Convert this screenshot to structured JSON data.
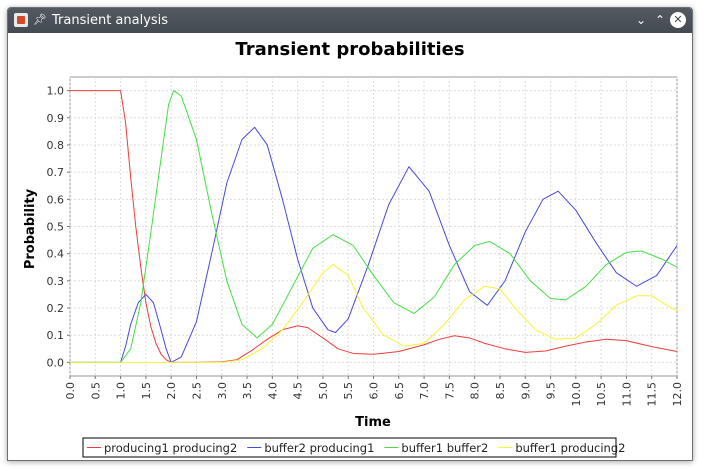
{
  "window": {
    "title": "Transient analysis",
    "app_icon": "java-app-icon",
    "pin_icon": "pin-icon",
    "controls": {
      "minimize": "⌄",
      "maximize": "⌃",
      "close": "✕"
    }
  },
  "chart_data": {
    "type": "line",
    "title": "Transient probabilities",
    "xlabel": "Time",
    "ylabel": "Probability",
    "xlim": [
      0,
      12
    ],
    "ylim": [
      -0.05,
      1.05
    ],
    "x_ticks": [
      "0.0",
      "0.5",
      "1.0",
      "1.5",
      "2.0",
      "2.5",
      "3.0",
      "3.5",
      "4.0",
      "4.5",
      "5.0",
      "5.5",
      "6.0",
      "6.5",
      "7.0",
      "7.5",
      "8.0",
      "8.5",
      "9.0",
      "9.5",
      "10.0",
      "10.5",
      "11.0",
      "11.5",
      "12.0"
    ],
    "y_ticks": [
      "0.0",
      "0.1",
      "0.2",
      "0.3",
      "0.4",
      "0.5",
      "0.6",
      "0.7",
      "0.8",
      "0.9",
      "1.0"
    ],
    "grid": true,
    "legend_position": "bottom",
    "series": [
      {
        "name": "producing1 producing2",
        "color": "#f03c3c",
        "points": [
          [
            0,
            1.0
          ],
          [
            0.5,
            1.0
          ],
          [
            1.0,
            1.0
          ],
          [
            1.1,
            0.88
          ],
          [
            1.2,
            0.68
          ],
          [
            1.3,
            0.5
          ],
          [
            1.4,
            0.35
          ],
          [
            1.5,
            0.22
          ],
          [
            1.6,
            0.13
          ],
          [
            1.7,
            0.07
          ],
          [
            1.8,
            0.03
          ],
          [
            1.9,
            0.01
          ],
          [
            2.0,
            0.0
          ],
          [
            2.5,
            0.0
          ],
          [
            3.0,
            0.002
          ],
          [
            3.3,
            0.01
          ],
          [
            3.6,
            0.045
          ],
          [
            3.9,
            0.085
          ],
          [
            4.2,
            0.12
          ],
          [
            4.5,
            0.135
          ],
          [
            4.7,
            0.128
          ],
          [
            5.0,
            0.09
          ],
          [
            5.3,
            0.05
          ],
          [
            5.6,
            0.033
          ],
          [
            6.0,
            0.03
          ],
          [
            6.5,
            0.04
          ],
          [
            7.0,
            0.065
          ],
          [
            7.3,
            0.085
          ],
          [
            7.6,
            0.098
          ],
          [
            7.9,
            0.09
          ],
          [
            8.2,
            0.07
          ],
          [
            8.6,
            0.05
          ],
          [
            9.0,
            0.037
          ],
          [
            9.4,
            0.042
          ],
          [
            9.8,
            0.06
          ],
          [
            10.2,
            0.075
          ],
          [
            10.6,
            0.085
          ],
          [
            11.0,
            0.08
          ],
          [
            11.5,
            0.058
          ],
          [
            12.0,
            0.04
          ]
        ]
      },
      {
        "name": "buffer2 producing1",
        "color": "#4848e0",
        "points": [
          [
            0,
            0.0
          ],
          [
            1.0,
            0.0
          ],
          [
            1.1,
            0.06
          ],
          [
            1.2,
            0.14
          ],
          [
            1.35,
            0.22
          ],
          [
            1.5,
            0.25
          ],
          [
            1.65,
            0.22
          ],
          [
            1.8,
            0.12
          ],
          [
            1.9,
            0.05
          ],
          [
            2.0,
            0.0
          ],
          [
            2.2,
            0.02
          ],
          [
            2.5,
            0.15
          ],
          [
            2.8,
            0.4
          ],
          [
            3.1,
            0.66
          ],
          [
            3.4,
            0.82
          ],
          [
            3.65,
            0.865
          ],
          [
            3.9,
            0.8
          ],
          [
            4.2,
            0.6
          ],
          [
            4.5,
            0.38
          ],
          [
            4.8,
            0.2
          ],
          [
            5.1,
            0.12
          ],
          [
            5.25,
            0.11
          ],
          [
            5.5,
            0.16
          ],
          [
            5.9,
            0.36
          ],
          [
            6.3,
            0.58
          ],
          [
            6.7,
            0.72
          ],
          [
            7.1,
            0.63
          ],
          [
            7.5,
            0.43
          ],
          [
            7.9,
            0.26
          ],
          [
            8.25,
            0.21
          ],
          [
            8.6,
            0.3
          ],
          [
            9.0,
            0.48
          ],
          [
            9.35,
            0.6
          ],
          [
            9.65,
            0.63
          ],
          [
            10.0,
            0.56
          ],
          [
            10.4,
            0.44
          ],
          [
            10.8,
            0.33
          ],
          [
            11.2,
            0.28
          ],
          [
            11.6,
            0.32
          ],
          [
            12.0,
            0.43
          ]
        ]
      },
      {
        "name": "buffer1 buffer2",
        "color": "#44e044",
        "points": [
          [
            0,
            0.0
          ],
          [
            1.0,
            0.0
          ],
          [
            1.2,
            0.05
          ],
          [
            1.4,
            0.22
          ],
          [
            1.6,
            0.48
          ],
          [
            1.8,
            0.75
          ],
          [
            1.95,
            0.95
          ],
          [
            2.05,
            1.0
          ],
          [
            2.2,
            0.98
          ],
          [
            2.5,
            0.82
          ],
          [
            2.8,
            0.55
          ],
          [
            3.1,
            0.3
          ],
          [
            3.4,
            0.14
          ],
          [
            3.7,
            0.09
          ],
          [
            4.0,
            0.14
          ],
          [
            4.4,
            0.28
          ],
          [
            4.8,
            0.42
          ],
          [
            5.2,
            0.47
          ],
          [
            5.6,
            0.43
          ],
          [
            6.0,
            0.32
          ],
          [
            6.4,
            0.22
          ],
          [
            6.8,
            0.18
          ],
          [
            7.2,
            0.24
          ],
          [
            7.6,
            0.36
          ],
          [
            8.0,
            0.43
          ],
          [
            8.3,
            0.445
          ],
          [
            8.7,
            0.4
          ],
          [
            9.1,
            0.3
          ],
          [
            9.5,
            0.235
          ],
          [
            9.8,
            0.23
          ],
          [
            10.2,
            0.28
          ],
          [
            10.6,
            0.36
          ],
          [
            11.0,
            0.405
          ],
          [
            11.3,
            0.41
          ],
          [
            11.7,
            0.38
          ],
          [
            12.0,
            0.35
          ]
        ]
      },
      {
        "name": "buffer1 producing2",
        "color": "#f5f533",
        "points": [
          [
            0,
            0.0
          ],
          [
            3.0,
            0.0
          ],
          [
            3.4,
            0.01
          ],
          [
            3.8,
            0.05
          ],
          [
            4.2,
            0.12
          ],
          [
            4.6,
            0.22
          ],
          [
            5.0,
            0.33
          ],
          [
            5.2,
            0.36
          ],
          [
            5.5,
            0.32
          ],
          [
            5.8,
            0.2
          ],
          [
            6.2,
            0.1
          ],
          [
            6.6,
            0.06
          ],
          [
            7.0,
            0.07
          ],
          [
            7.4,
            0.14
          ],
          [
            7.8,
            0.23
          ],
          [
            8.2,
            0.28
          ],
          [
            8.5,
            0.27
          ],
          [
            8.8,
            0.2
          ],
          [
            9.2,
            0.12
          ],
          [
            9.6,
            0.085
          ],
          [
            10.0,
            0.09
          ],
          [
            10.4,
            0.14
          ],
          [
            10.8,
            0.21
          ],
          [
            11.2,
            0.245
          ],
          [
            11.5,
            0.245
          ],
          [
            11.8,
            0.21
          ],
          [
            12.0,
            0.19
          ]
        ]
      }
    ]
  }
}
